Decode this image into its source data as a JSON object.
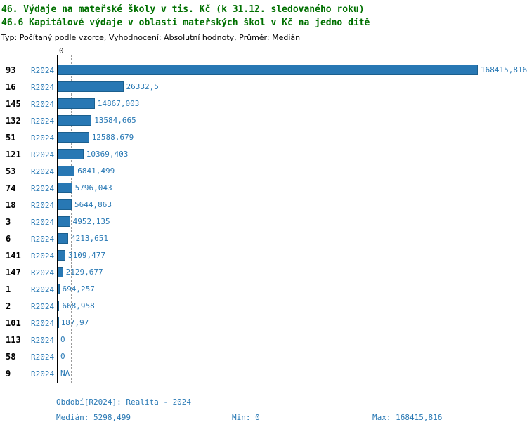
{
  "title": {
    "line1": "46. Výdaje na mateřské školy v tis. Kč (k 31.12. sledovaného roku)",
    "line2": "46.6 Kapitálové výdaje v oblasti mateřských škol v Kč na jedno dítě",
    "subtitle": "Typ: Počítaný podle vzorce, Vyhodnocení: Absolutní hodnoty, Průměr: Medián"
  },
  "axis": {
    "zero_label": "0"
  },
  "colors": {
    "title_green": "#007000",
    "bar_blue": "#2878b4",
    "text_blue": "#2878b4"
  },
  "chart_data": {
    "type": "bar",
    "orientation": "horizontal",
    "series_label": "R2024",
    "categories": [
      "93",
      "16",
      "145",
      "132",
      "51",
      "121",
      "53",
      "74",
      "18",
      "3",
      "6",
      "141",
      "147",
      "1",
      "2",
      "101",
      "113",
      "58",
      "9"
    ],
    "values": [
      168415.816,
      26332.5,
      14867.003,
      13584.665,
      12588.679,
      10369.403,
      6841.499,
      5796.043,
      5644.863,
      4952.135,
      4213.651,
      3109.477,
      2129.677,
      694.257,
      668.958,
      187.97,
      0,
      0,
      null
    ],
    "value_labels": [
      "168415,816",
      "26332,5",
      "14867,003",
      "13584,665",
      "12588,679",
      "10369,403",
      "6841,499",
      "5796,043",
      "5644,863",
      "4952,135",
      "4213,651",
      "3109,477",
      "2129,677",
      "694,257",
      "668,958",
      "187,97",
      "0",
      "0",
      "NA"
    ],
    "xlim": [
      0,
      168415.816
    ],
    "median": 5298.499,
    "min": 0,
    "max": 168415.816,
    "grid": false,
    "median_line": true,
    "legend_position": "none"
  },
  "footer": {
    "period": "Období[R2024]: Realita - 2024",
    "median": "Medián: 5298,499",
    "min": "Min: 0",
    "max": "Max: 168415,816"
  }
}
